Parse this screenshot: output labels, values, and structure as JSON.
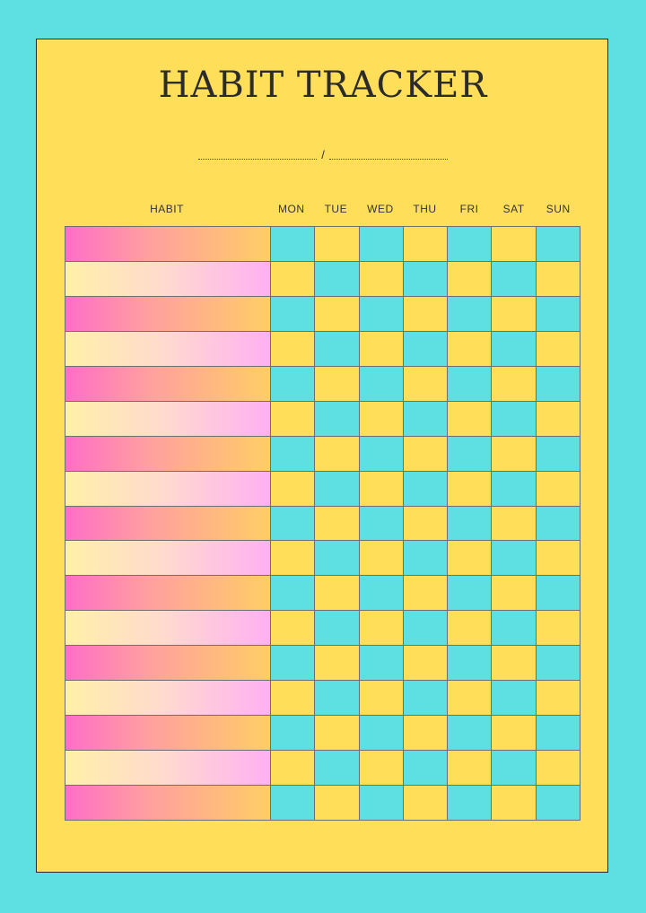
{
  "title": "HABIT TRACKER",
  "date_separator": "/",
  "columns": {
    "habit": "HABIT",
    "days": [
      "MON",
      "TUE",
      "WED",
      "THU",
      "FRI",
      "SAT",
      "SUN"
    ]
  },
  "colors": {
    "background": "#5EE0E3",
    "sheet": "#FFDF5A",
    "cyan_cell": "#5EE0E3",
    "yellow_cell": "#FFDF5A",
    "habit_gradient_a": [
      "#FF6EC7",
      "#FF9FA0",
      "#FFCE66"
    ],
    "habit_gradient_b": [
      "#FFF0A8",
      "#FFD9D0",
      "#FFB0F2"
    ]
  },
  "habit_rows": 17
}
